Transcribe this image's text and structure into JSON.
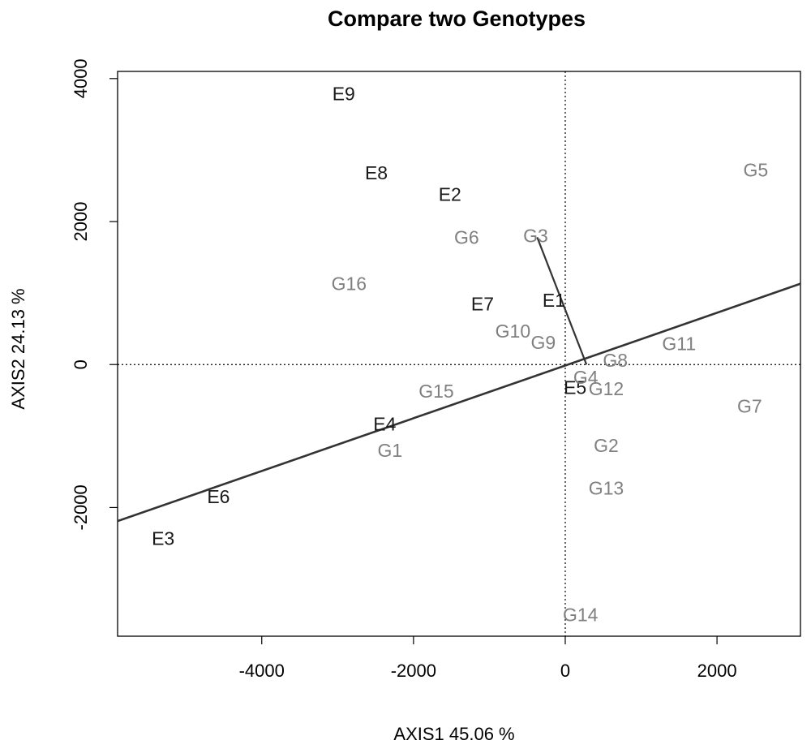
{
  "chart_data": {
    "type": "scatter",
    "title": "Compare two Genotypes",
    "xlabel": "AXIS1 45.06 %",
    "ylabel": "AXIS2 24.13 %",
    "xlim": [
      -5900,
      3100
    ],
    "ylim": [
      -3800,
      4100
    ],
    "xticks": [
      -4000,
      -2000,
      0,
      2000
    ],
    "yticks": [
      -2000,
      0,
      2000,
      4000
    ],
    "grid": false,
    "reference_lines": {
      "x": 0,
      "y": 0,
      "style": "dotted"
    },
    "colors": {
      "environment": "#1a1a1a",
      "genotype": "#808080",
      "line": "#333333"
    },
    "environments": [
      {
        "label": "E1",
        "x": -150,
        "y": 900
      },
      {
        "label": "E2",
        "x": -1520,
        "y": 2380
      },
      {
        "label": "E3",
        "x": -5300,
        "y": -2430
      },
      {
        "label": "E4",
        "x": -2380,
        "y": -830
      },
      {
        "label": "E5",
        "x": 130,
        "y": -320
      },
      {
        "label": "E6",
        "x": -4570,
        "y": -1850
      },
      {
        "label": "E7",
        "x": -1090,
        "y": 850
      },
      {
        "label": "E8",
        "x": -2490,
        "y": 2680
      },
      {
        "label": "E9",
        "x": -2920,
        "y": 3790
      }
    ],
    "genotypes": [
      {
        "label": "G1",
        "x": -2310,
        "y": -1200
      },
      {
        "label": "G2",
        "x": 540,
        "y": -1130
      },
      {
        "label": "G3",
        "x": -390,
        "y": 1800
      },
      {
        "label": "G4",
        "x": 270,
        "y": -180
      },
      {
        "label": "G5",
        "x": 2510,
        "y": 2720
      },
      {
        "label": "G6",
        "x": -1300,
        "y": 1780
      },
      {
        "label": "G7",
        "x": 2430,
        "y": -580
      },
      {
        "label": "G8",
        "x": 660,
        "y": 60
      },
      {
        "label": "G9",
        "x": -290,
        "y": 310
      },
      {
        "label": "G10",
        "x": -690,
        "y": 470
      },
      {
        "label": "G11",
        "x": 1500,
        "y": 290
      },
      {
        "label": "G12",
        "x": 540,
        "y": -340
      },
      {
        "label": "G13",
        "x": 540,
        "y": -1730
      },
      {
        "label": "G14",
        "x": 200,
        "y": -3500
      },
      {
        "label": "G15",
        "x": -1700,
        "y": -370
      },
      {
        "label": "G16",
        "x": -2850,
        "y": 1130
      }
    ],
    "lines": [
      {
        "name": "average-axis",
        "from": [
          -5900,
          -2190
        ],
        "to": [
          3100,
          1130
        ]
      },
      {
        "name": "genotype-connector",
        "from": [
          -370,
          1780
        ],
        "to": [
          280,
          0
        ]
      }
    ]
  }
}
